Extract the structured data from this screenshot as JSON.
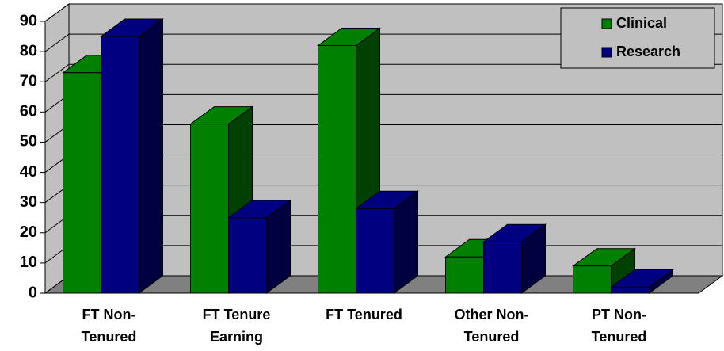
{
  "chart_data": {
    "type": "bar3d",
    "categories": [
      [
        "FT Non-",
        "Tenured"
      ],
      [
        "FT Tenure",
        "Earning"
      ],
      [
        "FT Tenured"
      ],
      [
        "Other Non-",
        "Tenured"
      ],
      [
        "PT Non-",
        "Tenured"
      ]
    ],
    "series": [
      {
        "name": "Clinical",
        "color": "#008000",
        "values": [
          73,
          56,
          82,
          12,
          9
        ]
      },
      {
        "name": "Research",
        "color": "#000080",
        "values": [
          85,
          25,
          28,
          17,
          2
        ]
      }
    ],
    "ylim": [
      0,
      90
    ],
    "yticks": [
      0,
      10,
      20,
      30,
      40,
      50,
      60,
      70,
      80,
      90
    ],
    "grid": true,
    "legend": "top-right"
  }
}
